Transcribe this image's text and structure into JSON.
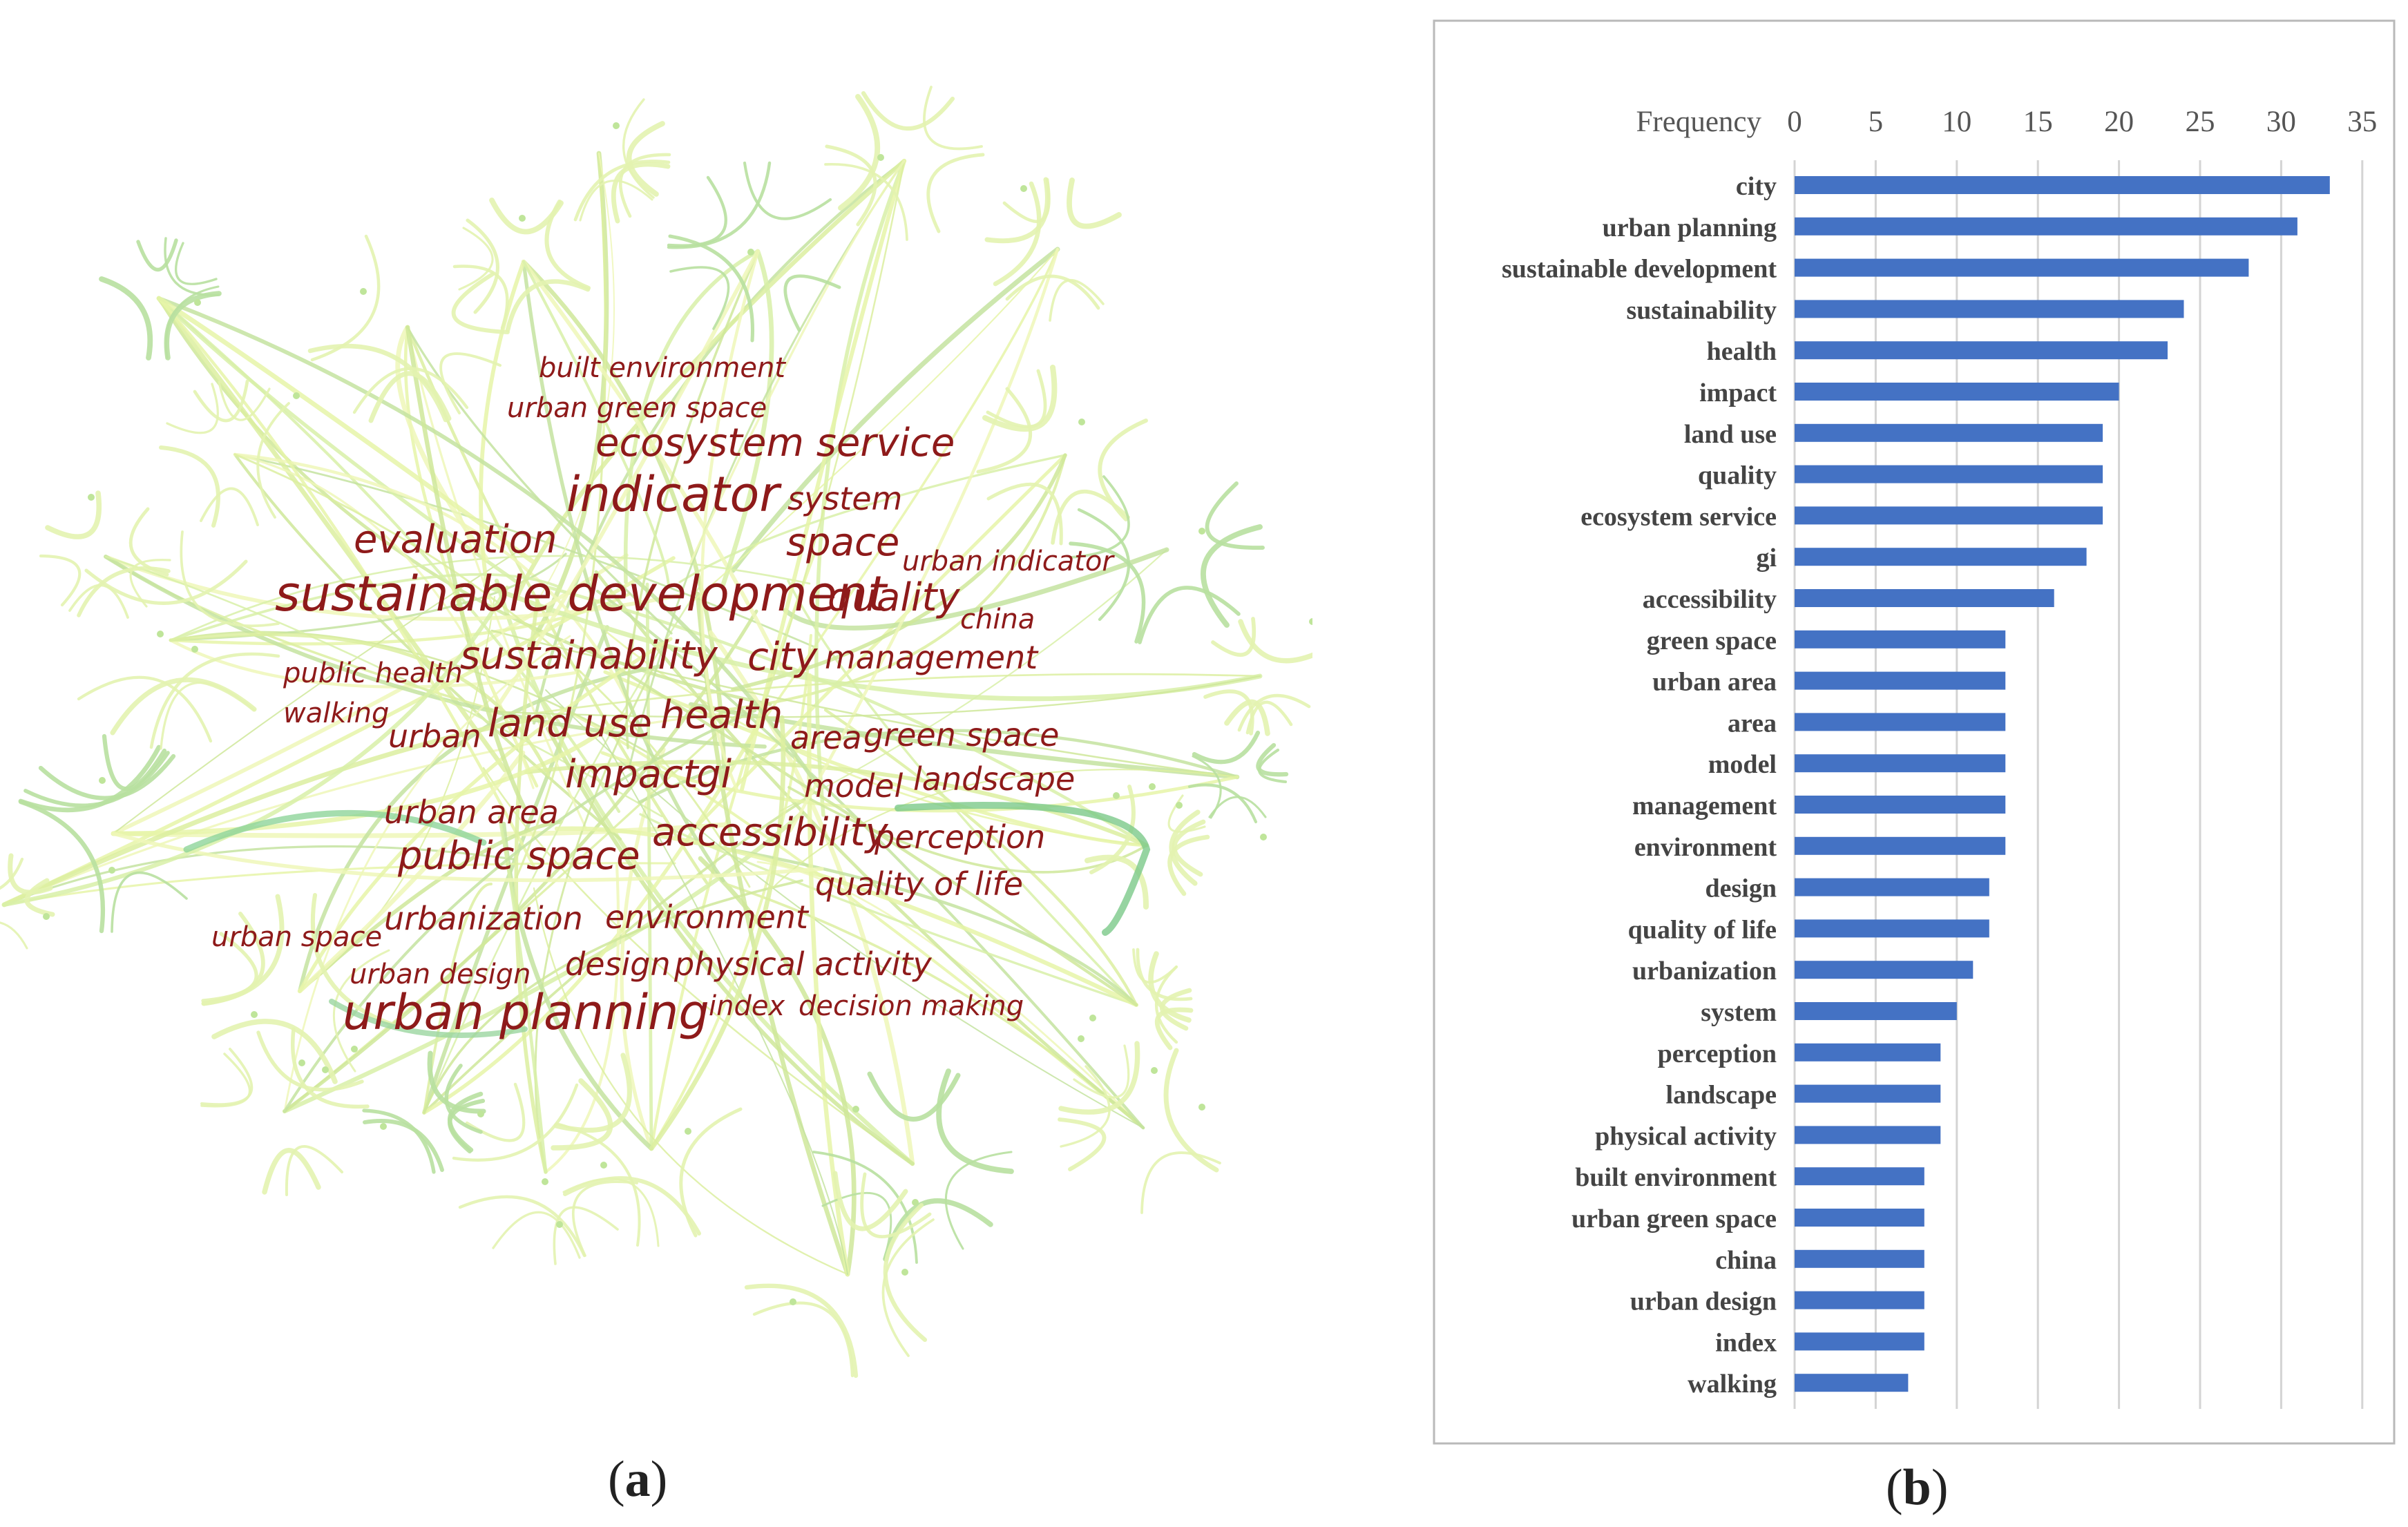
{
  "wordcloud": {
    "label_prefix": "(",
    "label_letter": "a",
    "label_suffix": ")",
    "words": [
      {
        "text": "built environment",
        "size": "s"
      },
      {
        "text": "urban green space",
        "size": "s"
      },
      {
        "text": "ecosystem service",
        "size": "l"
      },
      {
        "text": "indicator",
        "size": "xl"
      },
      {
        "text": "system",
        "size": "m"
      },
      {
        "text": "evaluation",
        "size": "l"
      },
      {
        "text": "space",
        "size": "l"
      },
      {
        "text": "urban indicator",
        "size": "s"
      },
      {
        "text": "sustainable development",
        "size": "xl"
      },
      {
        "text": "quality",
        "size": "l"
      },
      {
        "text": "china",
        "size": "s"
      },
      {
        "text": "public health",
        "size": "s"
      },
      {
        "text": "sustainability",
        "size": "l"
      },
      {
        "text": "city",
        "size": "l"
      },
      {
        "text": "management",
        "size": "m"
      },
      {
        "text": "walking",
        "size": "s"
      },
      {
        "text": "urban",
        "size": "m"
      },
      {
        "text": "land use",
        "size": "l"
      },
      {
        "text": "health",
        "size": "l"
      },
      {
        "text": "area",
        "size": "m"
      },
      {
        "text": "green space",
        "size": "m"
      },
      {
        "text": "impact",
        "size": "l"
      },
      {
        "text": "gi",
        "size": "l"
      },
      {
        "text": "model",
        "size": "m"
      },
      {
        "text": "landscape",
        "size": "m"
      },
      {
        "text": "urban area",
        "size": "m"
      },
      {
        "text": "accessibility",
        "size": "l"
      },
      {
        "text": "perception",
        "size": "m"
      },
      {
        "text": "public space",
        "size": "l"
      },
      {
        "text": "quality of life",
        "size": "m"
      },
      {
        "text": "urban space",
        "size": "s"
      },
      {
        "text": "urbanization",
        "size": "m"
      },
      {
        "text": "environment",
        "size": "m"
      },
      {
        "text": "urban design",
        "size": "s"
      },
      {
        "text": "design",
        "size": "m"
      },
      {
        "text": "physical activity",
        "size": "m"
      },
      {
        "text": "urban planning",
        "size": "xl"
      },
      {
        "text": "index",
        "size": "s"
      },
      {
        "text": "decision making",
        "size": "s"
      }
    ]
  },
  "chart_data": {
    "type": "bar",
    "orientation": "horizontal",
    "title": "",
    "xlabel": "Frequency",
    "ylabel": "",
    "xlim": [
      0,
      35
    ],
    "xticks": [
      0,
      5,
      10,
      15,
      20,
      25,
      30,
      35
    ],
    "grid": true,
    "bar_color": "#4472c4",
    "label_prefix": "(",
    "label_letter": "b",
    "label_suffix": ")",
    "categories": [
      "city",
      "urban planning",
      "sustainable development",
      "sustainability",
      "health",
      "impact",
      "land use",
      "quality",
      "ecosystem service",
      "gi",
      "accessibility",
      "green space",
      "urban area",
      "area",
      "model",
      "management",
      "environment",
      "design",
      "quality of life",
      "urbanization",
      "system",
      "perception",
      "landscape",
      "physical activity",
      "built environment",
      "urban green space",
      "china",
      "urban design",
      "index",
      "walking"
    ],
    "values": [
      33,
      31,
      28,
      24,
      23,
      20,
      19,
      19,
      19,
      18,
      16,
      13,
      13,
      13,
      13,
      13,
      13,
      12,
      12,
      11,
      10,
      9,
      9,
      9,
      8,
      8,
      8,
      8,
      8,
      7
    ]
  }
}
